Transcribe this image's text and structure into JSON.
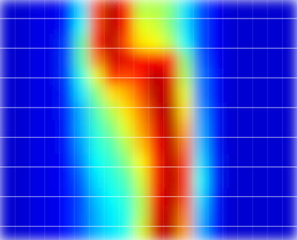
{
  "chart_data": {
    "type": "heatmap",
    "colormap": "jet",
    "zlim": [
      0,
      1
    ],
    "grid": true,
    "values": [
      [
        0.08,
        0.08,
        0.1,
        0.1,
        0.15,
        0.35,
        0.8,
        0.95,
        0.85,
        0.55,
        0.55,
        0.5,
        0.35,
        0.2,
        0.12,
        0.08,
        0.08,
        0.08,
        0.08,
        0.08
      ],
      [
        0.08,
        0.08,
        0.1,
        0.1,
        0.15,
        0.38,
        0.8,
        0.95,
        0.85,
        0.6,
        0.58,
        0.5,
        0.35,
        0.2,
        0.12,
        0.08,
        0.08,
        0.08,
        0.08,
        0.08
      ],
      [
        0.08,
        0.08,
        0.1,
        0.1,
        0.18,
        0.45,
        0.85,
        0.95,
        0.8,
        0.65,
        0.62,
        0.55,
        0.38,
        0.2,
        0.12,
        0.08,
        0.08,
        0.08,
        0.08,
        0.08
      ],
      [
        0.08,
        0.08,
        0.1,
        0.1,
        0.18,
        0.45,
        0.75,
        0.92,
        0.9,
        0.88,
        0.88,
        0.85,
        0.5,
        0.22,
        0.12,
        0.08,
        0.08,
        0.08,
        0.08,
        0.08
      ],
      [
        0.08,
        0.08,
        0.1,
        0.1,
        0.18,
        0.4,
        0.6,
        0.85,
        0.8,
        0.85,
        0.95,
        0.9,
        0.55,
        0.25,
        0.14,
        0.08,
        0.08,
        0.08,
        0.08,
        0.08
      ],
      [
        0.08,
        0.08,
        0.1,
        0.1,
        0.16,
        0.35,
        0.5,
        0.65,
        0.7,
        0.8,
        0.95,
        0.92,
        0.6,
        0.25,
        0.14,
        0.08,
        0.08,
        0.08,
        0.08,
        0.08
      ],
      [
        0.08,
        0.08,
        0.1,
        0.1,
        0.16,
        0.3,
        0.45,
        0.55,
        0.65,
        0.75,
        0.92,
        0.95,
        0.65,
        0.28,
        0.15,
        0.08,
        0.08,
        0.08,
        0.08,
        0.08
      ],
      [
        0.08,
        0.08,
        0.1,
        0.1,
        0.15,
        0.3,
        0.42,
        0.5,
        0.6,
        0.72,
        0.9,
        0.95,
        0.7,
        0.3,
        0.15,
        0.08,
        0.08,
        0.08,
        0.08,
        0.08
      ],
      [
        0.08,
        0.08,
        0.1,
        0.1,
        0.15,
        0.28,
        0.4,
        0.45,
        0.55,
        0.68,
        0.88,
        0.95,
        0.75,
        0.32,
        0.15,
        0.08,
        0.08,
        0.08,
        0.08,
        0.08
      ],
      [
        0.08,
        0.08,
        0.1,
        0.1,
        0.14,
        0.25,
        0.38,
        0.42,
        0.5,
        0.62,
        0.85,
        0.95,
        0.8,
        0.35,
        0.16,
        0.08,
        0.08,
        0.08,
        0.08,
        0.08
      ],
      [
        0.08,
        0.08,
        0.1,
        0.1,
        0.14,
        0.22,
        0.35,
        0.4,
        0.45,
        0.58,
        0.85,
        0.95,
        0.82,
        0.38,
        0.16,
        0.08,
        0.08,
        0.08,
        0.08,
        0.08
      ],
      [
        0.08,
        0.08,
        0.1,
        0.1,
        0.14,
        0.2,
        0.32,
        0.38,
        0.42,
        0.55,
        0.88,
        0.95,
        0.8,
        0.35,
        0.15,
        0.08,
        0.08,
        0.08,
        0.08,
        0.08
      ],
      [
        0.08,
        0.08,
        0.1,
        0.1,
        0.14,
        0.2,
        0.3,
        0.36,
        0.4,
        0.55,
        0.9,
        0.95,
        0.75,
        0.32,
        0.15,
        0.08,
        0.08,
        0.08,
        0.08,
        0.08
      ],
      [
        0.08,
        0.08,
        0.1,
        0.1,
        0.14,
        0.2,
        0.3,
        0.35,
        0.4,
        0.58,
        0.92,
        0.95,
        0.72,
        0.3,
        0.15,
        0.08,
        0.08,
        0.08,
        0.08,
        0.08
      ]
    ]
  }
}
